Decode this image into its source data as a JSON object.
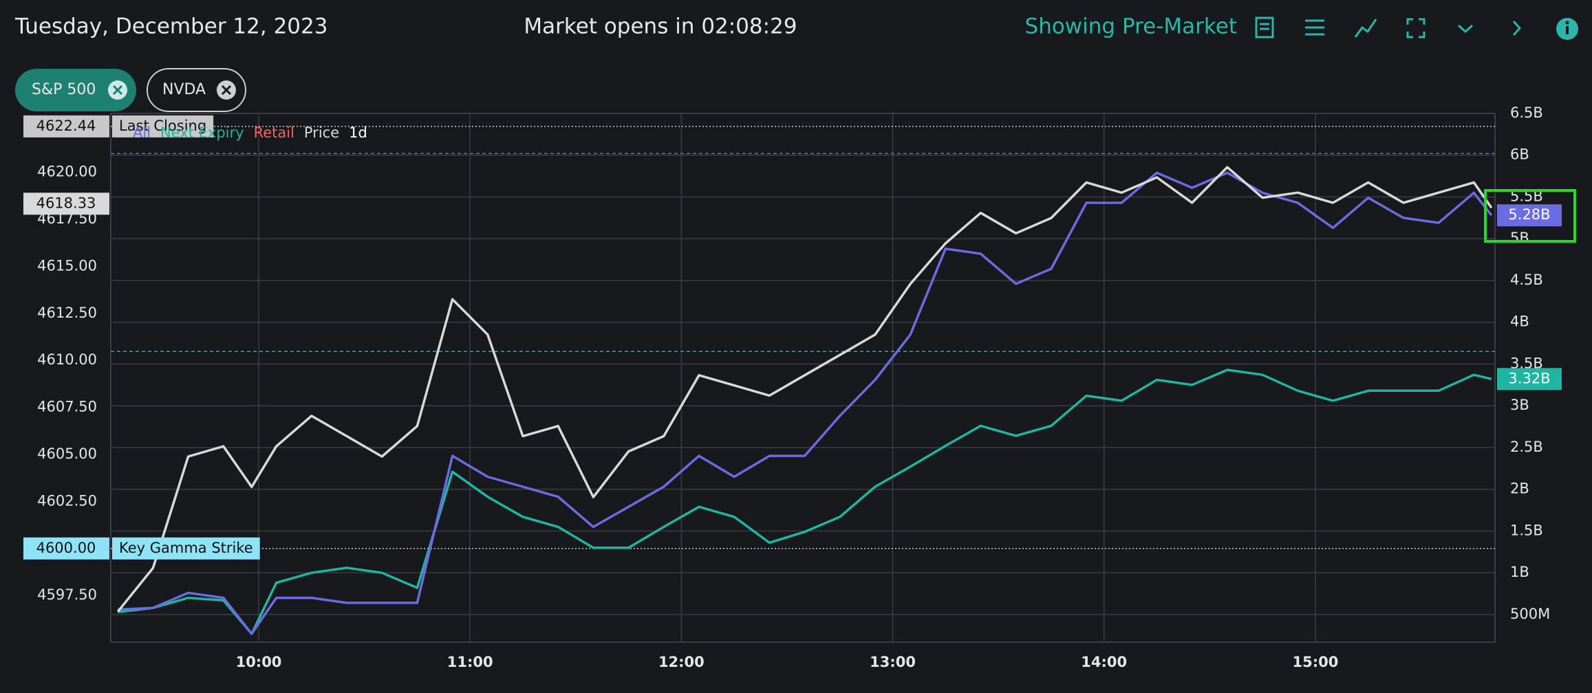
{
  "header": {
    "date": "Tuesday, December 12, 2023",
    "market_status": "Market opens in 02:08:29",
    "session": "Showing Pre-Market"
  },
  "chips": [
    "S&P 500",
    "NVDA"
  ],
  "chart_data": {
    "type": "line",
    "retail_label": "Retail",
    "period": "1d",
    "x": [
      560,
      570,
      580,
      590,
      598,
      605,
      615,
      625,
      635,
      645,
      655,
      665,
      675,
      685,
      695,
      705,
      715,
      725,
      735,
      745,
      755,
      765,
      775,
      785,
      795,
      805,
      815,
      825,
      835,
      845,
      855,
      865,
      875,
      885,
      895,
      905,
      915,
      925,
      935,
      945,
      950
    ],
    "xlim": [
      558,
      951
    ],
    "xticks": [
      {
        "value": 600,
        "label": "10:00"
      },
      {
        "value": 660,
        "label": "11:00"
      },
      {
        "value": 720,
        "label": "12:00"
      },
      {
        "value": 780,
        "label": "13:00"
      },
      {
        "value": 840,
        "label": "14:00"
      },
      {
        "value": 900,
        "label": "15:00"
      }
    ],
    "ylim": [
      4595.02,
      4623.13
    ],
    "yticks": [
      {
        "value": 4620,
        "label": "4620.00"
      },
      {
        "value": 4617.5,
        "label": "4617.50"
      },
      {
        "value": 4615,
        "label": "4615.00"
      },
      {
        "value": 4612.5,
        "label": "4612.50"
      },
      {
        "value": 4610,
        "label": "4610.00"
      },
      {
        "value": 4607.5,
        "label": "4607.50"
      },
      {
        "value": 4605,
        "label": "4605.00"
      },
      {
        "value": 4602.5,
        "label": "4602.50"
      },
      {
        "value": 4597.5,
        "label": "4597.50"
      }
    ],
    "y2lim": [
      0.17,
      6.5
    ],
    "y2ticks": [
      {
        "value": 6.5,
        "label": "6.5B"
      },
      {
        "value": 6,
        "label": "6B"
      },
      {
        "value": 5.5,
        "label": "5.5B"
      },
      {
        "value": 5,
        "label": "5B"
      },
      {
        "value": 4.5,
        "label": "4.5B"
      },
      {
        "value": 4,
        "label": "4B"
      },
      {
        "value": 3.5,
        "label": "3.5B"
      },
      {
        "value": 3,
        "label": "3B"
      },
      {
        "value": 2.5,
        "label": "2.5B"
      },
      {
        "value": 2,
        "label": "2B"
      },
      {
        "value": 1.5,
        "label": "1.5B"
      },
      {
        "value": 1,
        "label": "1B"
      },
      {
        "value": 0.5,
        "label": "500M"
      }
    ],
    "grid": true,
    "retail_color": "#f06464",
    "series": [
      {
        "name": "All",
        "color": "#6b6be3",
        "axis": "y2",
        "level": 6.02,
        "tag": {
          "value": 5.28,
          "label": "5.28B"
        },
        "values": [
          0.56,
          0.58,
          0.76,
          0.7,
          0.27,
          0.7,
          0.7,
          0.64,
          0.64,
          0.64,
          2.4,
          2.15,
          2.03,
          1.91,
          1.55,
          1.79,
          2.03,
          2.4,
          2.15,
          2.4,
          2.4,
          2.88,
          3.31,
          3.85,
          4.88,
          4.82,
          4.46,
          4.64,
          5.43,
          5.43,
          5.79,
          5.61,
          5.79,
          5.55,
          5.43,
          5.13,
          5.49,
          5.25,
          5.19,
          5.55,
          5.28
        ]
      },
      {
        "name": "Next Expiry",
        "color": "#1fb5a3",
        "axis": "y2",
        "level": 3.65,
        "tag": {
          "value": 3.32,
          "label": "3.32B"
        },
        "values": [
          0.53,
          0.58,
          0.7,
          0.67,
          0.27,
          0.88,
          1.0,
          1.06,
          1.0,
          0.82,
          2.21,
          1.91,
          1.67,
          1.55,
          1.3,
          1.3,
          1.55,
          1.79,
          1.67,
          1.36,
          1.49,
          1.67,
          2.03,
          2.27,
          2.52,
          2.76,
          2.64,
          2.76,
          3.12,
          3.06,
          3.31,
          3.25,
          3.43,
          3.37,
          3.18,
          3.06,
          3.18,
          3.18,
          3.18,
          3.37,
          3.32
        ]
      },
      {
        "name": "Price",
        "color": "#d9d9d9",
        "axis": "y",
        "values": [
          4596.64,
          4598.96,
          4604.89,
          4605.43,
          4603.27,
          4605.43,
          4607.05,
          4605.97,
          4604.89,
          4606.51,
          4613.25,
          4611.37,
          4605.97,
          4606.51,
          4602.73,
          4605.16,
          4605.97,
          4609.21,
          4608.67,
          4608.13,
          4609.21,
          4610.29,
          4611.37,
          4614.06,
          4616.22,
          4617.84,
          4616.76,
          4617.57,
          4619.46,
          4618.92,
          4619.73,
          4618.38,
          4620.27,
          4618.65,
          4618.92,
          4618.38,
          4619.46,
          4618.38,
          4618.92,
          4619.46,
          4618.11
        ]
      }
    ],
    "price_tags": [
      {
        "value": 4622.44,
        "label": "4622.44",
        "text": "Last Closing",
        "color": "#c8c8c8"
      },
      {
        "value": 4618.33,
        "label": "4618.33",
        "color": "#d9d9d9"
      },
      {
        "value": 4600,
        "label": "4600.00",
        "text": "Key Gamma Strike",
        "color": "#8fe3f7"
      }
    ]
  }
}
